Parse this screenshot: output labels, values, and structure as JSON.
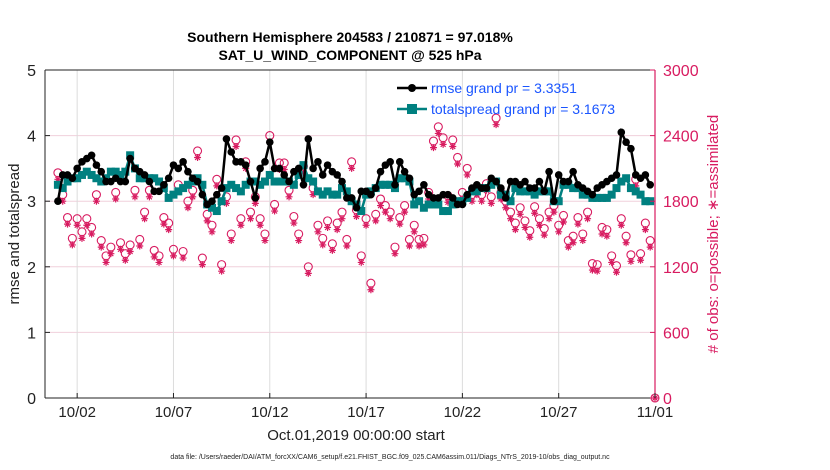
{
  "chart_data": {
    "type": "line",
    "title_line1": "Southern Hemisphere 204583 / 210871 = 97.018%",
    "title_line2": "SAT_U_WIND_COMPONENT @ 525 hPa",
    "xlabel": "Oct.01,2019 00:00:00 start",
    "ylabel_left": "rmse and totalspread",
    "ylabel_right": "# of obs: o=possible; ∗=assimilated",
    "xlim_days": [
      0.33,
      32
    ],
    "ylim_left": [
      0,
      5
    ],
    "ylim_right": [
      0,
      3000
    ],
    "x_ticks": [
      {
        "day": 2,
        "label": "10/02"
      },
      {
        "day": 7,
        "label": "10/07"
      },
      {
        "day": 12,
        "label": "10/12"
      },
      {
        "day": 17,
        "label": "10/17"
      },
      {
        "day": 22,
        "label": "10/22"
      },
      {
        "day": 27,
        "label": "10/27"
      },
      {
        "day": 32,
        "label": "11/01"
      }
    ],
    "y_ticks_left": [
      "0",
      "1",
      "2",
      "3",
      "4",
      "5"
    ],
    "y_ticks_right": [
      "0",
      "600",
      "1200",
      "1800",
      "2400",
      "3000"
    ],
    "grid": true,
    "legend_position": "top-right",
    "colors": {
      "rmse": "#000000",
      "spread": "#008080",
      "obs": "#d81b60",
      "legend_text": "#1a55ff",
      "right_axis": "#d81b60"
    },
    "series": [
      {
        "name": "rmse grand pr = 3.3351",
        "key": "rmse",
        "start_day": 1,
        "step_days": 0.25,
        "values": [
          3.0,
          3.4,
          3.4,
          3.35,
          3.5,
          3.6,
          3.65,
          3.7,
          3.55,
          3.45,
          3.3,
          3.3,
          3.35,
          3.3,
          3.3,
          3.65,
          3.5,
          3.45,
          3.4,
          3.3,
          3.15,
          3.15,
          3.25,
          3.35,
          3.55,
          3.5,
          3.6,
          3.45,
          3.35,
          3.3,
          3.1,
          2.95,
          3.0,
          3.1,
          3.2,
          3.95,
          3.75,
          3.6,
          3.6,
          3.55,
          3.3,
          3.05,
          3.5,
          3.6,
          3.9,
          3.5,
          3.5,
          3.4,
          3.3,
          3.45,
          3.5,
          3.25,
          3.95,
          3.5,
          3.6,
          3.4,
          3.55,
          3.45,
          3.4,
          3.3,
          3.05,
          3.05,
          2.9,
          3.15,
          3.15,
          3.1,
          3.2,
          3.45,
          3.55,
          3.6,
          3.25,
          3.6,
          3.45,
          3.35,
          3.1,
          3.15,
          3.25,
          3.1,
          3.05,
          3.05,
          3.1,
          3.1,
          3.05,
          2.95,
          2.95,
          3.1,
          3.2,
          3.25,
          3.2,
          3.2,
          3.35,
          3.3,
          3.2,
          3.05,
          3.3,
          3.3,
          3.25,
          3.3,
          3.2,
          3.2,
          3.3,
          3.15,
          3.45,
          3.0,
          3.4,
          3.3,
          3.3,
          3.45,
          3.25,
          3.2,
          3.15,
          3.1,
          3.2,
          3.25,
          3.3,
          3.35,
          3.4,
          4.05,
          3.9,
          3.8,
          3.4,
          3.35,
          3.4,
          3.25
        ]
      },
      {
        "name": "totalspread grand pr = 3.1673",
        "key": "spread",
        "start_day": 1,
        "step_days": 0.25,
        "values": [
          3.25,
          3.2,
          3.3,
          3.35,
          3.35,
          3.4,
          3.45,
          3.4,
          3.35,
          3.3,
          3.35,
          3.45,
          3.45,
          3.4,
          3.45,
          3.7,
          3.5,
          3.35,
          3.35,
          3.35,
          3.35,
          3.3,
          3.2,
          3.05,
          3.1,
          3.15,
          3.2,
          3.25,
          3.3,
          3.35,
          3.25,
          2.95,
          2.9,
          2.85,
          3.0,
          3.2,
          3.25,
          3.2,
          3.15,
          3.25,
          3.3,
          3.3,
          3.25,
          3.3,
          3.4,
          3.3,
          3.3,
          3.3,
          3.3,
          3.25,
          3.4,
          3.55,
          3.35,
          3.3,
          3.15,
          3.1,
          3.15,
          3.1,
          3.1,
          3.2,
          3.15,
          3.0,
          2.95,
          2.85,
          3.1,
          3.15,
          3.2,
          3.25,
          3.25,
          3.25,
          3.2,
          3.35,
          3.35,
          3.3,
          2.95,
          3.0,
          2.9,
          2.95,
          2.95,
          2.95,
          2.85,
          2.85,
          2.95,
          3.0,
          3.0,
          3.05,
          3.15,
          3.15,
          3.2,
          3.2,
          3.25,
          3.3,
          3.1,
          3.1,
          3.0,
          3.2,
          3.15,
          3.15,
          3.15,
          3.1,
          3.15,
          3.15,
          3.15,
          3.0,
          3.0,
          3.25,
          3.25,
          3.2,
          3.2,
          3.1,
          3.1,
          3.05,
          3.05,
          3.05,
          3.05,
          3.1,
          3.2,
          3.3,
          3.35,
          3.2,
          3.15,
          3.1,
          3.0,
          3.0
        ]
      },
      {
        "name": "obs possible",
        "key": "possible",
        "start_day": 1,
        "step_days": 0.25,
        "values": [
          2060,
          1860,
          1650,
          1460,
          1640,
          1520,
          1640,
          1560,
          1860,
          1440,
          1300,
          1380,
          1880,
          1420,
          1320,
          1400,
          1900,
          1450,
          1700,
          1900,
          1350,
          1300,
          1650,
          1600,
          1360,
          1950,
          1340,
          1800,
          1900,
          2260,
          1280,
          1680,
          1580,
          2000,
          1220,
          1840,
          1500,
          2360,
          1640,
          2160,
          1700,
          1840,
          1640,
          1500,
          2400,
          1770,
          2150,
          2150,
          1900,
          1660,
          1500,
          2120,
          1200,
          1920,
          1580,
          1460,
          1620,
          1410,
          1600,
          1700,
          1450,
          2160,
          1720,
          1300,
          1640,
          1050,
          1680,
          1820,
          1760,
          1700,
          1380,
          1650,
          1760,
          1450,
          1580,
          1450,
          1460,
          1880,
          2350,
          2480,
          2380,
          1850,
          2360,
          2200,
          1880,
          2100,
          1860,
          1920,
          1860,
          1960,
          1840,
          2560,
          1880,
          1800,
          1700,
          1600,
          1740,
          1620,
          1530,
          1750,
          1640,
          1550,
          1700,
          1760,
          1580,
          1670,
          1440,
          1480,
          1650,
          1500,
          1700,
          1230,
          1220,
          1560,
          1540,
          1300,
          1210,
          1640,
          1480,
          1310,
          2000,
          1320,
          1600,
          1440,
          0
        ]
      },
      {
        "name": "obs assimilated",
        "key": "assimilated",
        "start_day": 1,
        "step_days": 0.25,
        "values": [
          2000,
          1800,
          1590,
          1400,
          1580,
          1460,
          1580,
          1500,
          1800,
          1380,
          1240,
          1320,
          1820,
          1360,
          1260,
          1340,
          1840,
          1390,
          1640,
          1840,
          1290,
          1240,
          1590,
          1540,
          1300,
          1890,
          1280,
          1740,
          1840,
          2200,
          1220,
          1620,
          1520,
          1940,
          1160,
          1780,
          1440,
          2300,
          1580,
          2100,
          1640,
          1780,
          1580,
          1440,
          2340,
          1710,
          2090,
          2090,
          1840,
          1600,
          1440,
          2060,
          1140,
          1860,
          1520,
          1400,
          1560,
          1350,
          1540,
          1640,
          1390,
          2100,
          1660,
          1240,
          1580,
          990,
          1620,
          1760,
          1700,
          1640,
          1320,
          1590,
          1700,
          1390,
          1520,
          1390,
          1400,
          1820,
          2290,
          2420,
          2320,
          1790,
          2300,
          2140,
          1820,
          2040,
          1800,
          1860,
          1800,
          1900,
          1780,
          2500,
          1820,
          1740,
          1640,
          1540,
          1680,
          1560,
          1470,
          1690,
          1580,
          1490,
          1640,
          1700,
          1520,
          1610,
          1380,
          1420,
          1590,
          1440,
          1640,
          1170,
          1160,
          1500,
          1480,
          1240,
          1150,
          1580,
          1420,
          1250,
          1940,
          1260,
          1540,
          1380,
          0
        ]
      }
    ]
  },
  "footer": "data file: /Users/raeder/DAI/ATM_forcXX/CAM6_setup/f.e21.FHIST_BGC.f09_025.CAM6assim.011/Diags_NTrS_2019-10/obs_diag_output.nc"
}
